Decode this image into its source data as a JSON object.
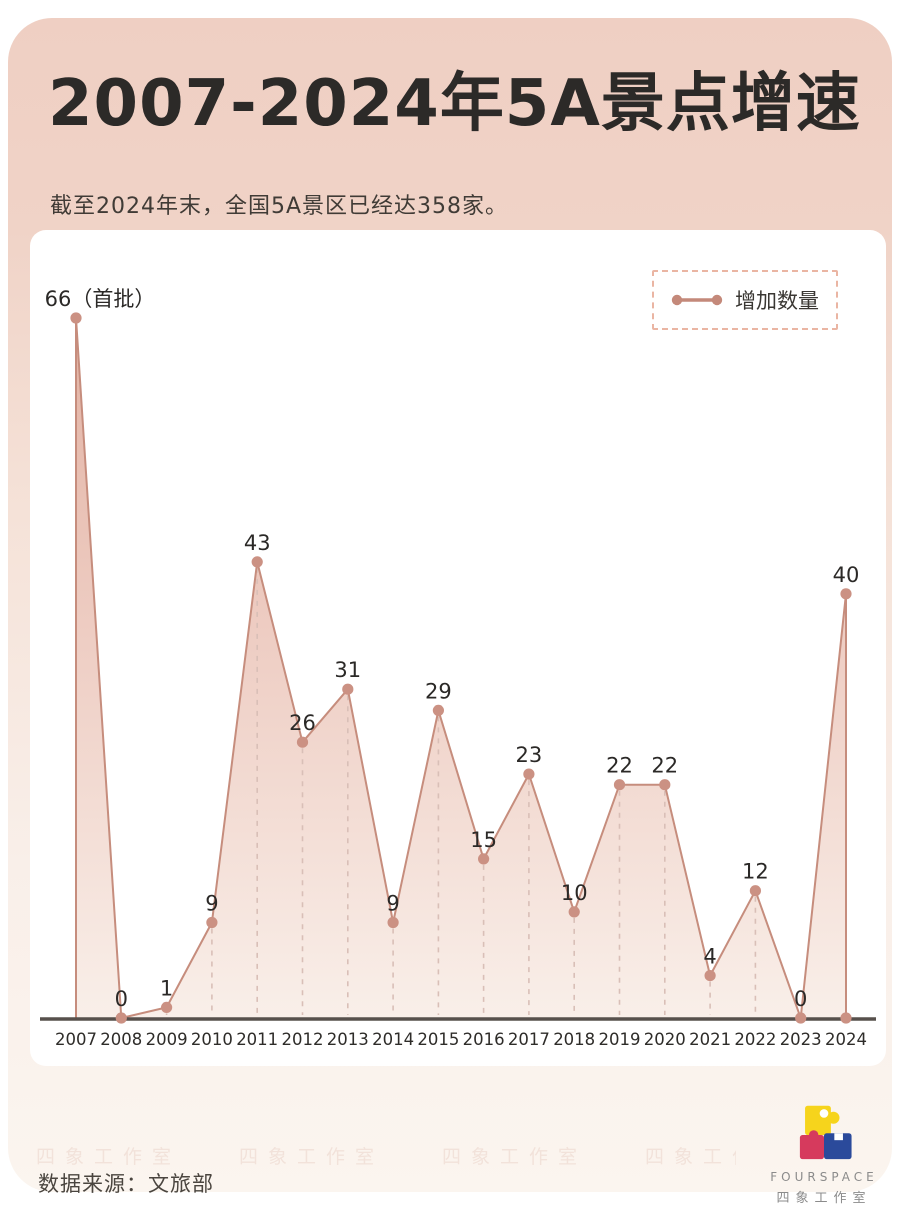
{
  "header": {
    "title": "2007-2024年5A景点增速",
    "subtitle": "截至2024年末，全国5A景区已经达358家。"
  },
  "legend": {
    "label": "增加数量"
  },
  "chart_data": {
    "type": "area",
    "title": "2007-2024年5A景点增速",
    "categories": [
      "2007",
      "2008",
      "2009",
      "2010",
      "2011",
      "2012",
      "2013",
      "2014",
      "2015",
      "2016",
      "2017",
      "2018",
      "2019",
      "2020",
      "2021",
      "2022",
      "2023",
      "2024"
    ],
    "series": [
      {
        "name": "增加数量",
        "values": [
          66,
          0,
          1,
          9,
          43,
          26,
          31,
          9,
          29,
          15,
          23,
          10,
          22,
          22,
          4,
          12,
          0,
          40
        ]
      }
    ],
    "point_labels": [
      "66（首批）",
      "0",
      "1",
      "9",
      "43",
      "26",
      "31",
      "9",
      "29",
      "15",
      "23",
      "10",
      "22",
      "22",
      "4",
      "12",
      "0",
      "40"
    ],
    "xlabel": "",
    "ylabel": "",
    "ylim": [
      0,
      66
    ],
    "legend_position": "top-right",
    "grid": "vertical dashed droplines from each point to x-axis",
    "colors": {
      "line": "#c68d7d",
      "dot": "#cb9183",
      "area_top": "#e2b2a3",
      "area_mid": "#eecdc3",
      "area_bottom": "#f9efe9",
      "dropline": "#d9bfb7",
      "axis": "#57504c",
      "point_label": "#2b2927",
      "tick_label": "#2e2c29"
    }
  },
  "footer": {
    "source": "数据来源：文旅部",
    "watermark": "四象工作室",
    "logo": {
      "brand": "FOURSPACE",
      "brand_cn": "四象工作室",
      "colors": {
        "yellow": "#f6d41c",
        "red": "#d63a5d",
        "blue": "#2b4a9b"
      }
    }
  },
  "theme": {
    "panel_pink": "#efcfc3",
    "panel_cream": "#fbf5ef",
    "card_bg": "#ffffff",
    "title_color": "#2c2a28"
  }
}
